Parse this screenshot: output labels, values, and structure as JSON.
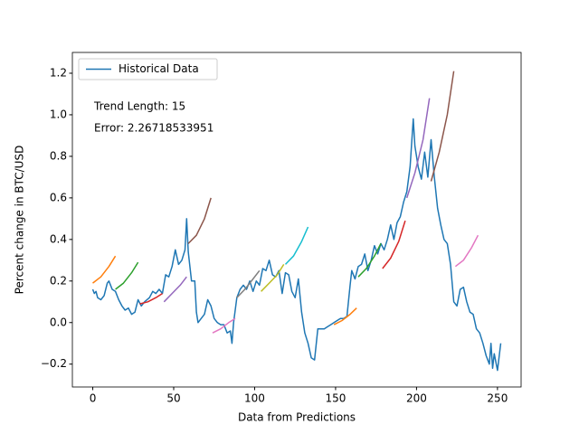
{
  "chart_data": {
    "type": "line",
    "xlabel": "Data from Predictions",
    "ylabel": "Percent change in BTC/USD",
    "annotations": [
      "Trend Length: 15",
      "Error: 2.26718533951"
    ],
    "legend": "upper left",
    "xlim": [
      -12.6,
      264.6
    ],
    "ylim": [
      -0.31,
      1.3
    ],
    "xticks": [
      0,
      50,
      100,
      150,
      200,
      250
    ],
    "yticks": [
      {
        "value": -0.2,
        "label": "−0.2"
      },
      {
        "value": 0,
        "label": "0.0"
      },
      0.2,
      0.4,
      0.6,
      0.8,
      {
        "value": 1,
        "label": "1.0"
      },
      1.2
    ],
    "series": [
      {
        "name": "Historical Data",
        "color": "#1f77b4",
        "x": [
          0,
          1,
          2,
          3,
          5,
          7,
          9,
          10,
          12,
          14,
          16,
          18,
          20,
          22,
          24,
          26,
          28,
          30,
          32,
          35,
          37,
          39,
          41,
          43,
          45,
          47,
          49,
          51,
          53,
          55,
          57,
          58,
          59,
          61,
          63,
          64,
          65,
          67,
          69,
          71,
          73,
          75,
          77,
          79,
          81,
          83,
          85,
          86,
          87,
          89,
          91,
          93,
          95,
          97,
          99,
          101,
          103,
          105,
          107,
          109,
          111,
          113,
          115,
          117,
          119,
          121,
          123,
          125,
          127,
          129,
          131,
          133,
          135,
          137,
          139,
          141,
          143,
          145,
          147,
          149,
          151,
          153,
          155,
          157,
          159,
          160,
          162,
          164,
          166,
          168,
          170,
          172,
          174,
          176,
          178,
          180,
          182,
          184,
          186,
          188,
          190,
          192,
          194,
          196,
          198,
          199,
          201,
          203,
          205,
          207,
          209,
          211,
          213,
          215,
          217,
          219,
          221,
          223,
          225,
          227,
          229,
          231,
          233,
          235,
          237,
          239,
          241,
          243,
          245,
          246,
          247,
          248,
          250,
          252
        ],
        "values": [
          0.16,
          0.14,
          0.15,
          0.12,
          0.11,
          0.13,
          0.19,
          0.2,
          0.16,
          0.15,
          0.11,
          0.08,
          0.06,
          0.07,
          0.04,
          0.05,
          0.11,
          0.08,
          0.1,
          0.12,
          0.15,
          0.14,
          0.16,
          0.14,
          0.23,
          0.22,
          0.27,
          0.35,
          0.28,
          0.3,
          0.35,
          0.5,
          0.34,
          0.2,
          0.2,
          0.05,
          0,
          0.02,
          0.04,
          0.11,
          0.08,
          0.02,
          0,
          -0.01,
          -0.01,
          -0.05,
          -0.04,
          -0.1,
          0,
          0.12,
          0.16,
          0.18,
          0.16,
          0.2,
          0.15,
          0.2,
          0.18,
          0.26,
          0.25,
          0.3,
          0.23,
          0.22,
          0.25,
          0.14,
          0.24,
          0.23,
          0.15,
          0.12,
          0.21,
          0.05,
          -0.05,
          -0.1,
          -0.17,
          -0.18,
          -0.03,
          -0.03,
          -0.03,
          -0.02,
          -0.01,
          0,
          0.01,
          0.02,
          0.02,
          0.03,
          0.18,
          0.25,
          0.21,
          0.27,
          0.28,
          0.33,
          0.25,
          0.3,
          0.37,
          0.33,
          0.38,
          0.35,
          0.4,
          0.47,
          0.4,
          0.48,
          0.51,
          0.58,
          0.63,
          0.75,
          0.98,
          0.85,
          0.75,
          0.69,
          0.82,
          0.7,
          0.88,
          0.7,
          0.55,
          0.47,
          0.4,
          0.38,
          0.28,
          0.1,
          0.08,
          0.16,
          0.17,
          0.1,
          0.05,
          0.04,
          -0.03,
          -0.05,
          -0.1,
          -0.16,
          -0.2,
          -0.1,
          -0.22,
          -0.15,
          -0.23,
          -0.1
        ]
      },
      {
        "color": "#ff7f0e",
        "x": [
          0,
          5,
          10,
          14
        ],
        "values": [
          0.19,
          0.22,
          0.27,
          0.32
        ]
      },
      {
        "color": "#2ca02c",
        "x": [
          14,
          19,
          24,
          28
        ],
        "values": [
          0.16,
          0.19,
          0.24,
          0.29
        ]
      },
      {
        "color": "#d62728",
        "x": [
          29,
          34,
          39,
          43
        ],
        "values": [
          0.09,
          0.1,
          0.12,
          0.14
        ]
      },
      {
        "color": "#9467bd",
        "x": [
          44,
          49,
          54,
          58
        ],
        "values": [
          0.1,
          0.14,
          0.18,
          0.22
        ]
      },
      {
        "color": "#8c564b",
        "x": [
          59,
          64,
          69,
          73
        ],
        "values": [
          0.38,
          0.42,
          0.5,
          0.6
        ]
      },
      {
        "color": "#e377c2",
        "x": [
          74,
          79,
          84,
          88
        ],
        "values": [
          -0.05,
          -0.03,
          0,
          0.02
        ]
      },
      {
        "color": "#7f7f7f",
        "x": [
          89,
          94,
          99,
          103
        ],
        "values": [
          0.12,
          0.16,
          0.21,
          0.25
        ]
      },
      {
        "color": "#bcbd22",
        "x": [
          104,
          109,
          114,
          118
        ],
        "values": [
          0.15,
          0.19,
          0.23,
          0.28
        ]
      },
      {
        "color": "#17becf",
        "x": [
          119,
          124,
          129,
          133
        ],
        "values": [
          0.28,
          0.32,
          0.39,
          0.46
        ]
      },
      {
        "color": "#ff7f0e",
        "x": [
          149,
          154,
          159,
          163
        ],
        "values": [
          -0.01,
          0.01,
          0.04,
          0.07
        ]
      },
      {
        "color": "#2ca02c",
        "x": [
          164,
          169,
          174,
          178
        ],
        "values": [
          0.22,
          0.26,
          0.32,
          0.38
        ]
      },
      {
        "color": "#d62728",
        "x": [
          179,
          184,
          189,
          193
        ],
        "values": [
          0.26,
          0.31,
          0.39,
          0.49
        ]
      },
      {
        "color": "#9467bd",
        "x": [
          194,
          199,
          204,
          208
        ],
        "values": [
          0.6,
          0.72,
          0.88,
          1.08
        ]
      },
      {
        "color": "#8c564b",
        "x": [
          209,
          214,
          219,
          223
        ],
        "values": [
          0.68,
          0.82,
          1,
          1.21
        ]
      },
      {
        "color": "#e377c2",
        "x": [
          224,
          229,
          234,
          238
        ],
        "values": [
          0.27,
          0.3,
          0.36,
          0.42
        ]
      }
    ]
  }
}
